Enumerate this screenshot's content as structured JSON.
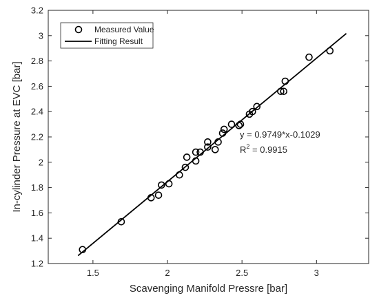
{
  "chart_data": {
    "type": "scatter",
    "xlabel": "Scavenging Manifold Pressre [bar]",
    "ylabel": "In-cylinder Pressure at EVC [bar]",
    "xlim": [
      1.2,
      3.35
    ],
    "ylim": [
      1.2,
      3.2
    ],
    "x_ticks": [
      "1.5",
      "2",
      "2.5",
      "3"
    ],
    "y_ticks": [
      "1.2",
      "1.4",
      "1.6",
      "1.8",
      "2",
      "2.2",
      "2.4",
      "2.6",
      "2.8",
      "3",
      "3.2"
    ],
    "grid": false,
    "legend_placement": "top-left",
    "legend": {
      "measured_label": "Measured Value",
      "fitting_label": "Fitting Result"
    },
    "series": [
      {
        "name": "Measured Value",
        "marker": "open-circle",
        "color": "#000000",
        "points": [
          {
            "x": 1.43,
            "y": 1.31
          },
          {
            "x": 1.69,
            "y": 1.53
          },
          {
            "x": 1.89,
            "y": 1.72
          },
          {
            "x": 1.94,
            "y": 1.74
          },
          {
            "x": 1.96,
            "y": 1.82
          },
          {
            "x": 2.01,
            "y": 1.83
          },
          {
            "x": 2.08,
            "y": 1.9
          },
          {
            "x": 2.12,
            "y": 1.96
          },
          {
            "x": 2.13,
            "y": 2.04
          },
          {
            "x": 2.19,
            "y": 2.01
          },
          {
            "x": 2.19,
            "y": 2.08
          },
          {
            "x": 2.22,
            "y": 2.08
          },
          {
            "x": 2.27,
            "y": 2.12
          },
          {
            "x": 2.27,
            "y": 2.16
          },
          {
            "x": 2.32,
            "y": 2.1
          },
          {
            "x": 2.34,
            "y": 2.16
          },
          {
            "x": 2.37,
            "y": 2.23
          },
          {
            "x": 2.38,
            "y": 2.26
          },
          {
            "x": 2.43,
            "y": 2.3
          },
          {
            "x": 2.48,
            "y": 2.29
          },
          {
            "x": 2.49,
            "y": 2.3
          },
          {
            "x": 2.55,
            "y": 2.38
          },
          {
            "x": 2.57,
            "y": 2.4
          },
          {
            "x": 2.6,
            "y": 2.44
          },
          {
            "x": 2.76,
            "y": 2.56
          },
          {
            "x": 2.78,
            "y": 2.56
          },
          {
            "x": 2.79,
            "y": 2.64
          },
          {
            "x": 2.95,
            "y": 2.83
          },
          {
            "x": 3.09,
            "y": 2.88
          }
        ]
      },
      {
        "name": "Fitting Result",
        "type": "line",
        "color": "#000000",
        "slope": 0.9749,
        "intercept": -0.1029,
        "x_range": [
          1.4,
          3.2
        ]
      }
    ],
    "annotations": {
      "equation": "y = 0.9749*x-0.1029",
      "r2_prefix": "R",
      "r2_sup": "2",
      "r2_value": " = 0.9915"
    }
  }
}
